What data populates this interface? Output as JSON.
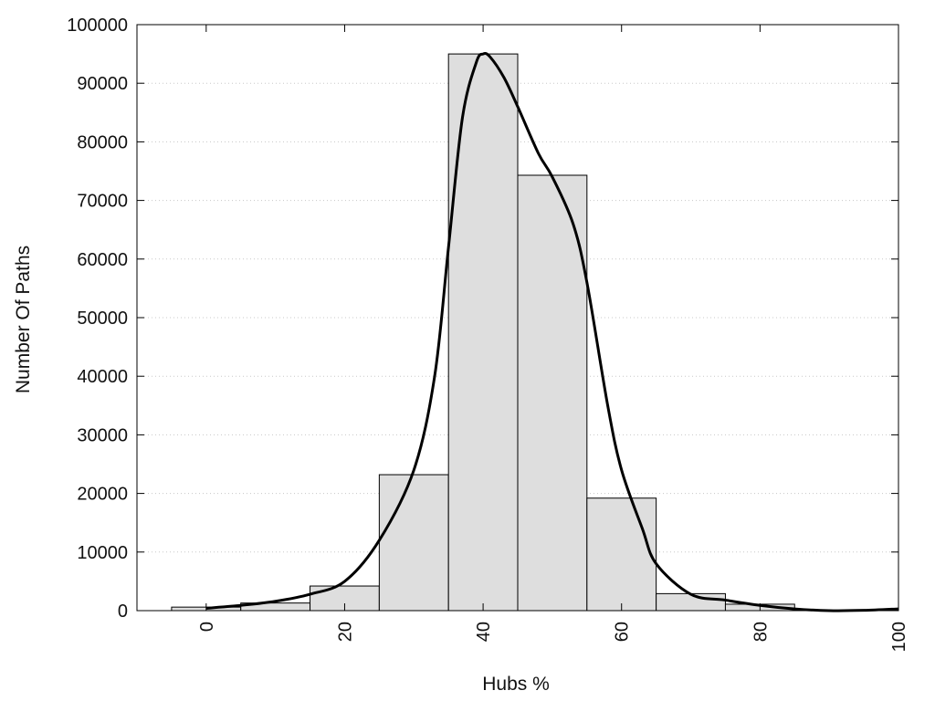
{
  "chart_data": {
    "type": "bar",
    "title": "",
    "xlabel": "Hubs %",
    "ylabel": "Number Of Paths",
    "xlim": [
      -10,
      100
    ],
    "ylim": [
      0,
      100000
    ],
    "x_ticks": [
      0,
      20,
      40,
      60,
      80,
      100
    ],
    "y_ticks": [
      0,
      10000,
      20000,
      30000,
      40000,
      50000,
      60000,
      70000,
      80000,
      90000,
      100000
    ],
    "grid": "horizontal dotted",
    "legend": "none",
    "bin_width": 10,
    "bins": [
      {
        "center": 0,
        "value": 600
      },
      {
        "center": 10,
        "value": 1300
      },
      {
        "center": 20,
        "value": 4200
      },
      {
        "center": 30,
        "value": 23200
      },
      {
        "center": 40,
        "value": 95000
      },
      {
        "center": 50,
        "value": 74300
      },
      {
        "center": 60,
        "value": 19200
      },
      {
        "center": 70,
        "value": 2900
      },
      {
        "center": 80,
        "value": 1100
      }
    ],
    "curve": {
      "x": [
        0,
        5,
        10,
        15,
        20,
        25,
        30,
        33,
        35,
        37,
        39,
        40,
        41,
        43,
        45,
        48,
        50,
        53,
        55,
        58,
        60,
        63,
        65,
        70,
        75,
        80,
        85,
        90,
        95,
        100
      ],
      "y": [
        400,
        900,
        1600,
        2800,
        5000,
        12000,
        24000,
        40000,
        62000,
        84000,
        93500,
        95000,
        94500,
        91000,
        86000,
        78000,
        74000,
        66000,
        56000,
        35000,
        24000,
        14000,
        8000,
        2800,
        1800,
        900,
        300,
        0,
        50,
        300
      ]
    },
    "colors": {
      "bar_fill": "#dedede",
      "bar_stroke": "#000000",
      "curve": "#000000",
      "grid": "#c8c8c8"
    }
  }
}
